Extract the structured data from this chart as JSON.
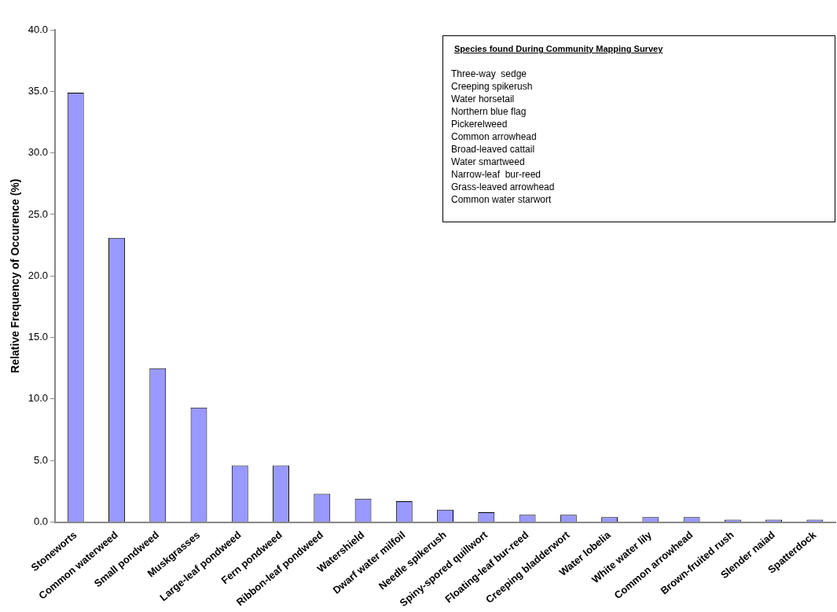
{
  "chart_data": {
    "type": "bar",
    "ylabel": "Relative Frequency of Occurence (%)",
    "categories": [
      "Stoneworts",
      "Common waterweed",
      "Small pondweed",
      "Muskgrasses",
      "Large-leaf pondweed",
      "Fern pondweed",
      "Ribbon-leaf pondweed",
      "Watershield",
      "Dwarf water milfoil",
      "Needle spikerush",
      "Spiny-spored quillwort",
      "Floating-leaf bur-reed",
      "Creeping bladderwort",
      "Water lobelia",
      "White water lily",
      "Common arrowhead",
      "Brown-fruited rush",
      "Slender naiad",
      "Spatterdock"
    ],
    "values": [
      34.9,
      23.1,
      12.5,
      9.3,
      4.6,
      4.6,
      2.3,
      1.9,
      1.7,
      1.0,
      0.8,
      0.6,
      0.6,
      0.4,
      0.4,
      0.4,
      0.2,
      0.2,
      0.2
    ],
    "color": "#9999ff",
    "ylim": [
      0,
      40
    ],
    "yticks": [
      {
        "value": 0,
        "label": "0.0"
      },
      {
        "value": 5,
        "label": "5.0"
      },
      {
        "value": 10,
        "label": "10.0"
      },
      {
        "value": 15,
        "label": "15.0"
      },
      {
        "value": 20,
        "label": "20.0"
      },
      {
        "value": 25,
        "label": "25.0"
      },
      {
        "value": 30,
        "label": "30.0"
      },
      {
        "value": 35,
        "label": "35.0"
      },
      {
        "value": 40,
        "label": "40.0"
      }
    ],
    "grid": false,
    "legend": false,
    "annotations": [
      "Species found During Community Mapping Survey",
      "Three-way  sedge",
      "Creeping spikerush",
      "Water horsetail",
      "Northern blue flag",
      "Pickerelweed",
      "Common arrowhead",
      "Broad-leaved cattail",
      "Water smartweed",
      "Narrow-leaf  bur-reed",
      "Grass-leaved arrowhead",
      "Common water starwort"
    ]
  }
}
